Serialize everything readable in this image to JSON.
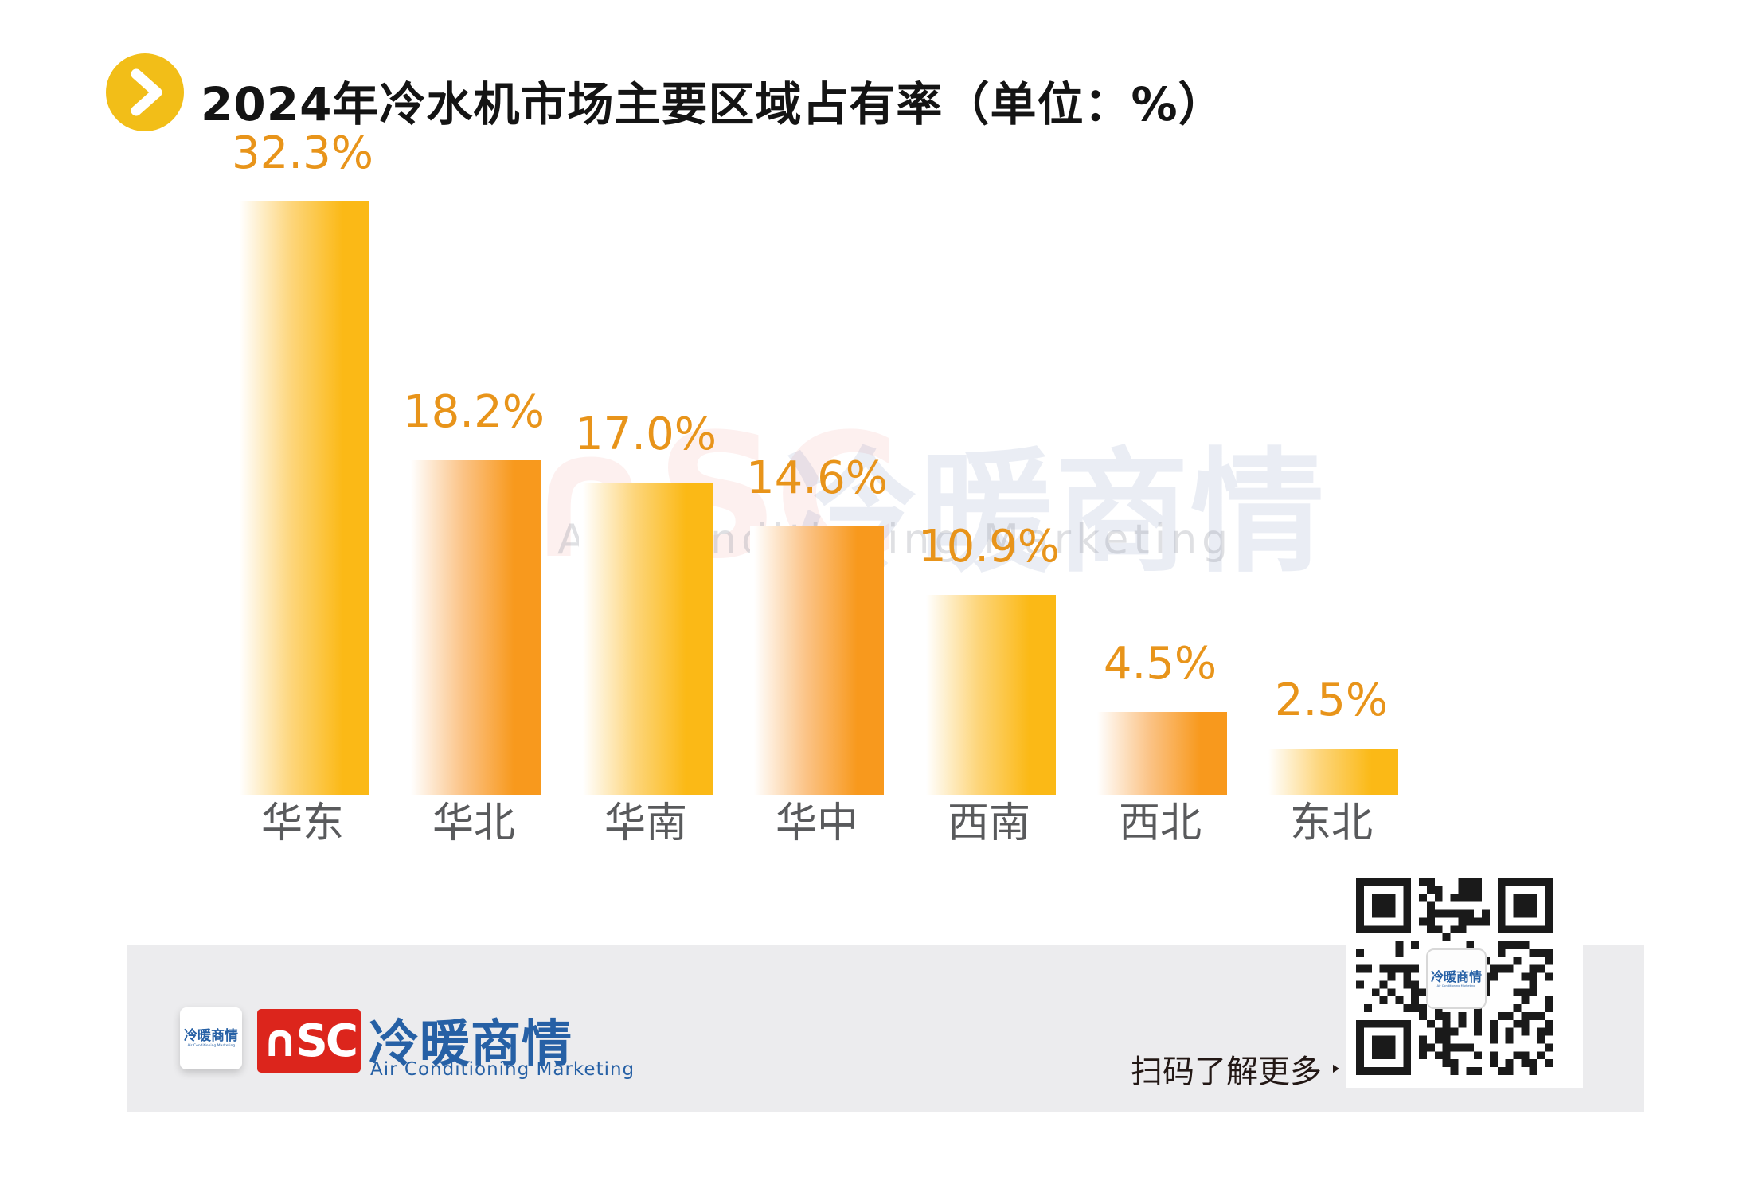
{
  "header": {
    "title_main": "2024年冷水机市场主要区域占有率",
    "title_unit": "（单位：%）",
    "bullet_color": "#F2BE18"
  },
  "chart_data": {
    "type": "bar",
    "title": "2024年冷水机市场主要区域占有率（单位：%）",
    "unit": "%",
    "categories": [
      "华东",
      "华北",
      "华南",
      "华中",
      "西南",
      "西北",
      "东北"
    ],
    "values": [
      32.3,
      18.2,
      17.0,
      14.6,
      10.9,
      4.5,
      2.5
    ],
    "value_labels": [
      "32.3%",
      "18.2%",
      "17.0%",
      "14.6%",
      "10.9%",
      "4.5%",
      "2.5%"
    ],
    "ylim": [
      0,
      35
    ],
    "grid": false,
    "legend": false,
    "xlabel": "",
    "ylabel": "",
    "value_label_color": "#E8941A",
    "category_label_color": "#595A5C",
    "bar_gradient_gold": [
      "#FFFFFF",
      "#FBB916"
    ],
    "bar_gradient_orange": [
      "#FFFFFF",
      "#F8991D"
    ]
  },
  "watermark": {
    "logo_letters": "∩SC",
    "cn": "冷暖商情",
    "en": "Air Conditioning Marketing"
  },
  "footer": {
    "logo_letters": "∩SC",
    "brand_cn": "冷暖商情",
    "brand_en": "Air Conditioning Marketing",
    "mini_card_cn": "冷暖商情",
    "mini_card_en": "Air Conditioning Marketing",
    "scan_text": "扫码了解更多",
    "qr_center_cn": "冷暖商情",
    "qr_center_en": "Air Conditioning Marketing",
    "brand_red": "#DC251C",
    "brand_blue": "#2660A5"
  }
}
